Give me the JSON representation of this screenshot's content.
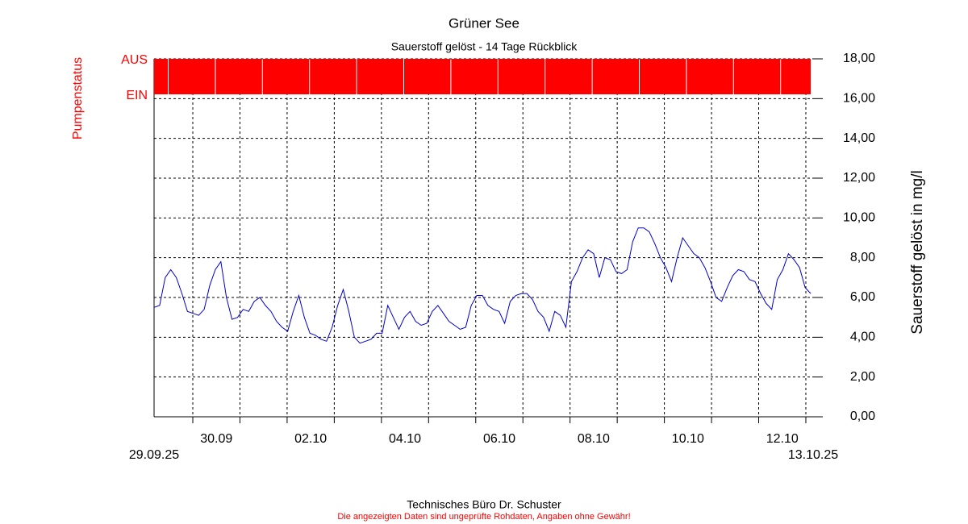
{
  "chart_data": {
    "type": "line",
    "title": "Grüner See",
    "subtitle": "Sauerstoff gelöst - 14 Tage Rückblick",
    "y_label": "Sauerstoff gelöst in mg/l",
    "ylim": [
      0,
      18
    ],
    "yticks": [
      {
        "value": 0,
        "label": "0,00"
      },
      {
        "value": 2,
        "label": "2,00"
      },
      {
        "value": 4,
        "label": "4,00"
      },
      {
        "value": 6,
        "label": "6,00"
      },
      {
        "value": 8,
        "label": "8,00"
      },
      {
        "value": 10,
        "label": "10,00"
      },
      {
        "value": 12,
        "label": "12,00"
      },
      {
        "value": 14,
        "label": "14,00"
      },
      {
        "value": 16,
        "label": "16,00"
      },
      {
        "value": 18,
        "label": "18,00"
      }
    ],
    "grid": true,
    "day_labels": [
      "30.09",
      null,
      "02.10",
      null,
      "04.10",
      null,
      "06.10",
      null,
      "08.10",
      null,
      "10.10",
      null,
      "12.10"
    ],
    "x_start_label": "29.09.25",
    "x_end_label": "13.10.25",
    "series": [
      {
        "color": "#0000cc",
        "values": [
          5.5,
          5.6,
          7.0,
          7.4,
          7.0,
          6.2,
          5.3,
          5.2,
          5.1,
          5.4,
          6.6,
          7.4,
          7.8,
          6.0,
          4.9,
          5.0,
          5.4,
          5.3,
          5.8,
          6.0,
          5.6,
          5.3,
          4.8,
          4.5,
          4.3,
          5.3,
          6.1,
          5.0,
          4.2,
          4.1,
          3.9,
          3.8,
          4.5,
          5.6,
          6.4,
          5.3,
          4.0,
          3.7,
          3.8,
          3.9,
          4.2,
          4.2,
          5.6,
          5.0,
          4.4,
          5.0,
          5.3,
          4.8,
          4.6,
          4.7,
          5.3,
          5.6,
          5.2,
          4.8,
          4.6,
          4.4,
          4.5,
          5.6,
          6.1,
          6.1,
          5.6,
          5.4,
          5.3,
          4.7,
          5.8,
          6.1,
          6.2,
          6.2,
          5.9,
          5.3,
          5.0,
          4.3,
          5.3,
          5.1,
          4.5,
          6.8,
          7.3,
          8.0,
          8.4,
          8.2,
          7.0,
          8.0,
          7.9,
          7.3,
          7.2,
          7.4,
          8.8,
          9.5,
          9.5,
          9.3,
          8.7,
          8.0,
          7.5,
          6.8,
          8.0,
          9.0,
          8.6,
          8.2,
          8.0,
          7.5,
          6.8,
          6.0,
          5.8,
          6.5,
          7.1,
          7.4,
          7.3,
          6.9,
          6.8,
          6.2,
          5.7,
          5.4,
          6.9,
          7.4,
          8.2,
          7.9,
          7.5,
          6.5,
          6.2
        ]
      }
    ],
    "pump_status": {
      "label": "Pumpenstatus",
      "state_off": "AUS",
      "state_on": "EIN",
      "color": "#ff0000",
      "values": [
        1,
        1,
        1,
        1,
        1,
        1,
        1,
        1,
        1,
        1,
        1,
        1,
        1,
        1,
        1
      ]
    },
    "footer": {
      "credit": "Technisches Büro Dr. Schuster",
      "disclaimer": "Die angezeigten Daten sind ungeprüfte Rohdaten, Angaben ohne Gewähr!"
    }
  }
}
